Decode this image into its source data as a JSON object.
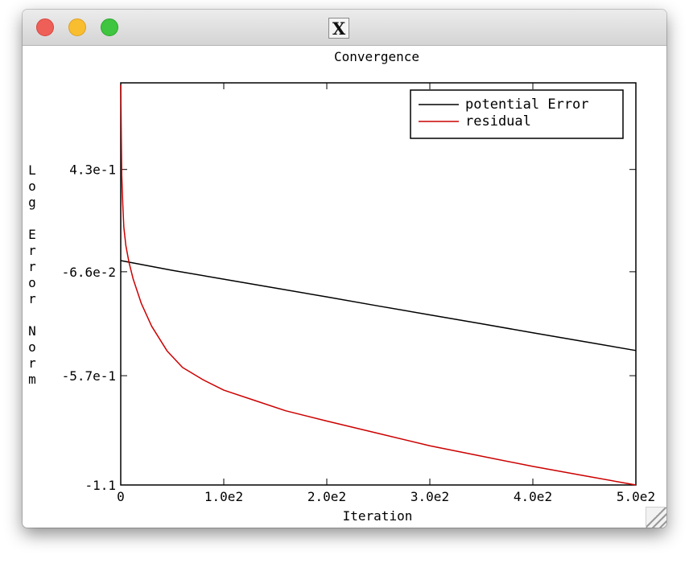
{
  "window": {
    "title_icon": "X",
    "buttons": [
      "close",
      "minimize",
      "zoom"
    ],
    "colors": {
      "close": "#ee5f58",
      "minimize": "#f8be2f",
      "zoom": "#3fc53f"
    }
  },
  "chart_data": {
    "type": "line",
    "title": "Convergence",
    "xlabel": "Iteration",
    "ylabel": "Log Error Norm",
    "xlim": [
      0,
      500
    ],
    "ylim": [
      -1.1,
      0.85
    ],
    "x_ticks": [
      0,
      100,
      200,
      300,
      400,
      500
    ],
    "x_tick_labels": [
      "0",
      "1.0e2",
      "2.0e2",
      "3.0e2",
      "4.0e2",
      "5.0e2"
    ],
    "y_ticks": [
      -1.1,
      -0.57,
      -0.066,
      0.43
    ],
    "y_tick_labels": [
      "-1.1",
      "-5.7e-1",
      "-6.6e-2",
      "4.3e-1"
    ],
    "grid": false,
    "legend_position": "top-right",
    "series": [
      {
        "name": "potential Error",
        "color": "#000000",
        "x": [
          0,
          50,
          100,
          150,
          200,
          250,
          300,
          350,
          400,
          450,
          500
        ],
        "y": [
          -0.012,
          -0.059,
          -0.102,
          -0.145,
          -0.188,
          -0.232,
          -0.275,
          -0.318,
          -0.362,
          -0.405,
          -0.448
        ]
      },
      {
        "name": "residual",
        "color": "#cc0000",
        "x": [
          0,
          1,
          2,
          3,
          5,
          8,
          12,
          20,
          30,
          45,
          60,
          80,
          100,
          130,
          160,
          200,
          250,
          300,
          350,
          400,
          450,
          500
        ],
        "y": [
          0.84,
          0.4,
          0.26,
          0.15,
          0.06,
          -0.02,
          -0.1,
          -0.22,
          -0.33,
          -0.45,
          -0.53,
          -0.59,
          -0.64,
          -0.69,
          -0.74,
          -0.79,
          -0.85,
          -0.91,
          -0.96,
          -1.01,
          -1.055,
          -1.1
        ]
      }
    ]
  }
}
